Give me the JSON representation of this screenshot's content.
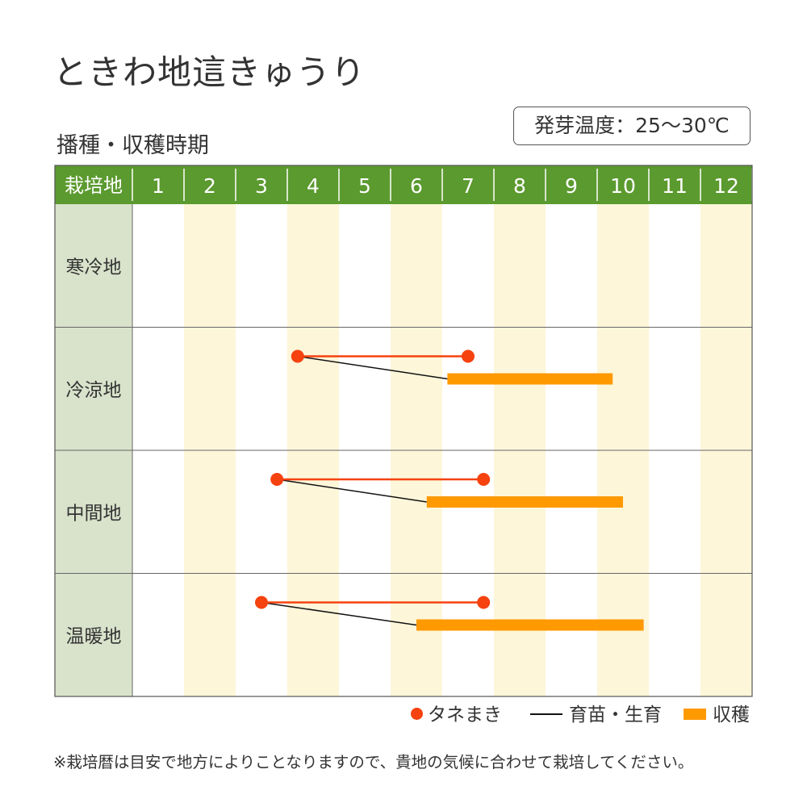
{
  "title": "ときわ地這きゅうり",
  "subtitle": "播種・収穫時期",
  "temperature_note": "発芽温度：25〜30℃",
  "chart_data": {
    "type": "gantt",
    "header_label": "栽培地",
    "months": [
      "1",
      "2",
      "3",
      "4",
      "5",
      "6",
      "7",
      "8",
      "9",
      "10",
      "11",
      "12"
    ],
    "regions": [
      {
        "name": "寒冷地",
        "sowing": null,
        "harvest": null
      },
      {
        "name": "冷涼地",
        "sowing": [
          4.2,
          7.5
        ],
        "harvest": [
          7.1,
          10.3
        ]
      },
      {
        "name": "中間地",
        "sowing": [
          3.8,
          7.8
        ],
        "harvest": [
          6.7,
          10.5
        ]
      },
      {
        "name": "温暖地",
        "sowing": [
          3.5,
          7.8
        ],
        "harvest": [
          6.5,
          10.9
        ]
      }
    ],
    "colors": {
      "header_bg": "#5b9a2f",
      "region_col_bg": "#d9e2cb",
      "stripe": "#fdf6d9",
      "sowing": "#f5420f",
      "harvest": "#ff9900",
      "growing_line": "#111111"
    }
  },
  "legend": {
    "sowing": "タネまき",
    "growing": "育苗・生育",
    "harvest": "収穫"
  },
  "footnote": "※栽培暦は目安で地方によりことなりますので、貴地の気候に合わせて栽培してください。"
}
